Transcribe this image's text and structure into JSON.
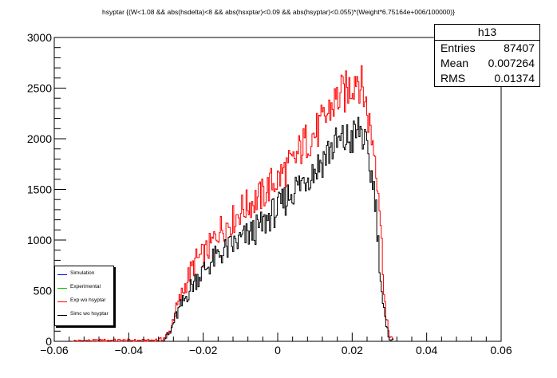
{
  "title": "hsyptar {(W<1.08 && abs(hsdelta)<8 && abs(hsxptar)<0.09 && abs(hsyptar)<0.055)*(Weight*6.75164e+006/100000)}",
  "stats": {
    "name": "h13",
    "entries_label": "Entries",
    "entries_value": "87407",
    "mean_label": "Mean",
    "mean_value": "0.007264",
    "rms_label": "RMS",
    "rms_value": "0.01374"
  },
  "legend": [
    {
      "label": "Simulation",
      "color": "#0000ff"
    },
    {
      "label": "Experimental",
      "color": "#00c000"
    },
    {
      "label": "Exp wo hsyptar",
      "color": "#ff0000"
    },
    {
      "label": "Simc wo hsyptar",
      "color": "#000000"
    }
  ],
  "chart_data": {
    "type": "line",
    "xlim": [
      -0.06,
      0.06
    ],
    "ylim": [
      0,
      3000
    ],
    "x_ticks": [
      "−0.06",
      "−0.04",
      "−0.02",
      "0",
      "0.02",
      "0.04",
      "0.06"
    ],
    "y_ticks": [
      "0",
      "500",
      "1000",
      "1500",
      "2000",
      "2500",
      "3000"
    ],
    "grid": false,
    "series": [
      {
        "name": "Exp wo hsyptar",
        "color": "#ff0000",
        "x": [
          -0.055,
          -0.045,
          -0.035,
          -0.031,
          -0.029,
          -0.028,
          -0.027,
          -0.026,
          -0.025,
          -0.024,
          -0.022,
          -0.02,
          -0.018,
          -0.016,
          -0.014,
          -0.012,
          -0.01,
          -0.008,
          -0.006,
          -0.004,
          -0.002,
          0.0,
          0.002,
          0.004,
          0.006,
          0.008,
          0.01,
          0.012,
          0.014,
          0.016,
          0.018,
          0.02,
          0.021,
          0.022,
          0.023,
          0.024,
          0.025,
          0.026,
          0.027,
          0.028,
          0.029,
          0.03,
          0.031
        ],
        "y": [
          5,
          10,
          8,
          20,
          100,
          250,
          350,
          450,
          550,
          650,
          800,
          850,
          950,
          1100,
          1150,
          1200,
          1300,
          1350,
          1400,
          1450,
          1550,
          1600,
          1700,
          1750,
          1900,
          2000,
          2050,
          2150,
          2300,
          2400,
          2450,
          2550,
          2650,
          2550,
          2450,
          2250,
          2050,
          1850,
          1500,
          800,
          200,
          50,
          5
        ]
      },
      {
        "name": "Simc wo hsyptar",
        "color": "#000000",
        "x": [
          -0.031,
          -0.029,
          -0.028,
          -0.027,
          -0.026,
          -0.025,
          -0.024,
          -0.022,
          -0.02,
          -0.018,
          -0.016,
          -0.014,
          -0.012,
          -0.01,
          -0.008,
          -0.006,
          -0.004,
          -0.002,
          0.0,
          0.002,
          0.004,
          0.006,
          0.008,
          0.01,
          0.012,
          0.014,
          0.016,
          0.018,
          0.02,
          0.021,
          0.022,
          0.023,
          0.024,
          0.025,
          0.026,
          0.027,
          0.028,
          0.029,
          0.03,
          0.031
        ],
        "y": [
          10,
          80,
          200,
          280,
          350,
          420,
          500,
          620,
          700,
          780,
          850,
          900,
          950,
          1000,
          1050,
          1100,
          1150,
          1250,
          1300,
          1400,
          1500,
          1550,
          1650,
          1700,
          1800,
          1900,
          1950,
          1980,
          2000,
          2050,
          2100,
          2000,
          1800,
          1650,
          1450,
          900,
          400,
          120,
          30,
          5
        ]
      }
    ]
  }
}
